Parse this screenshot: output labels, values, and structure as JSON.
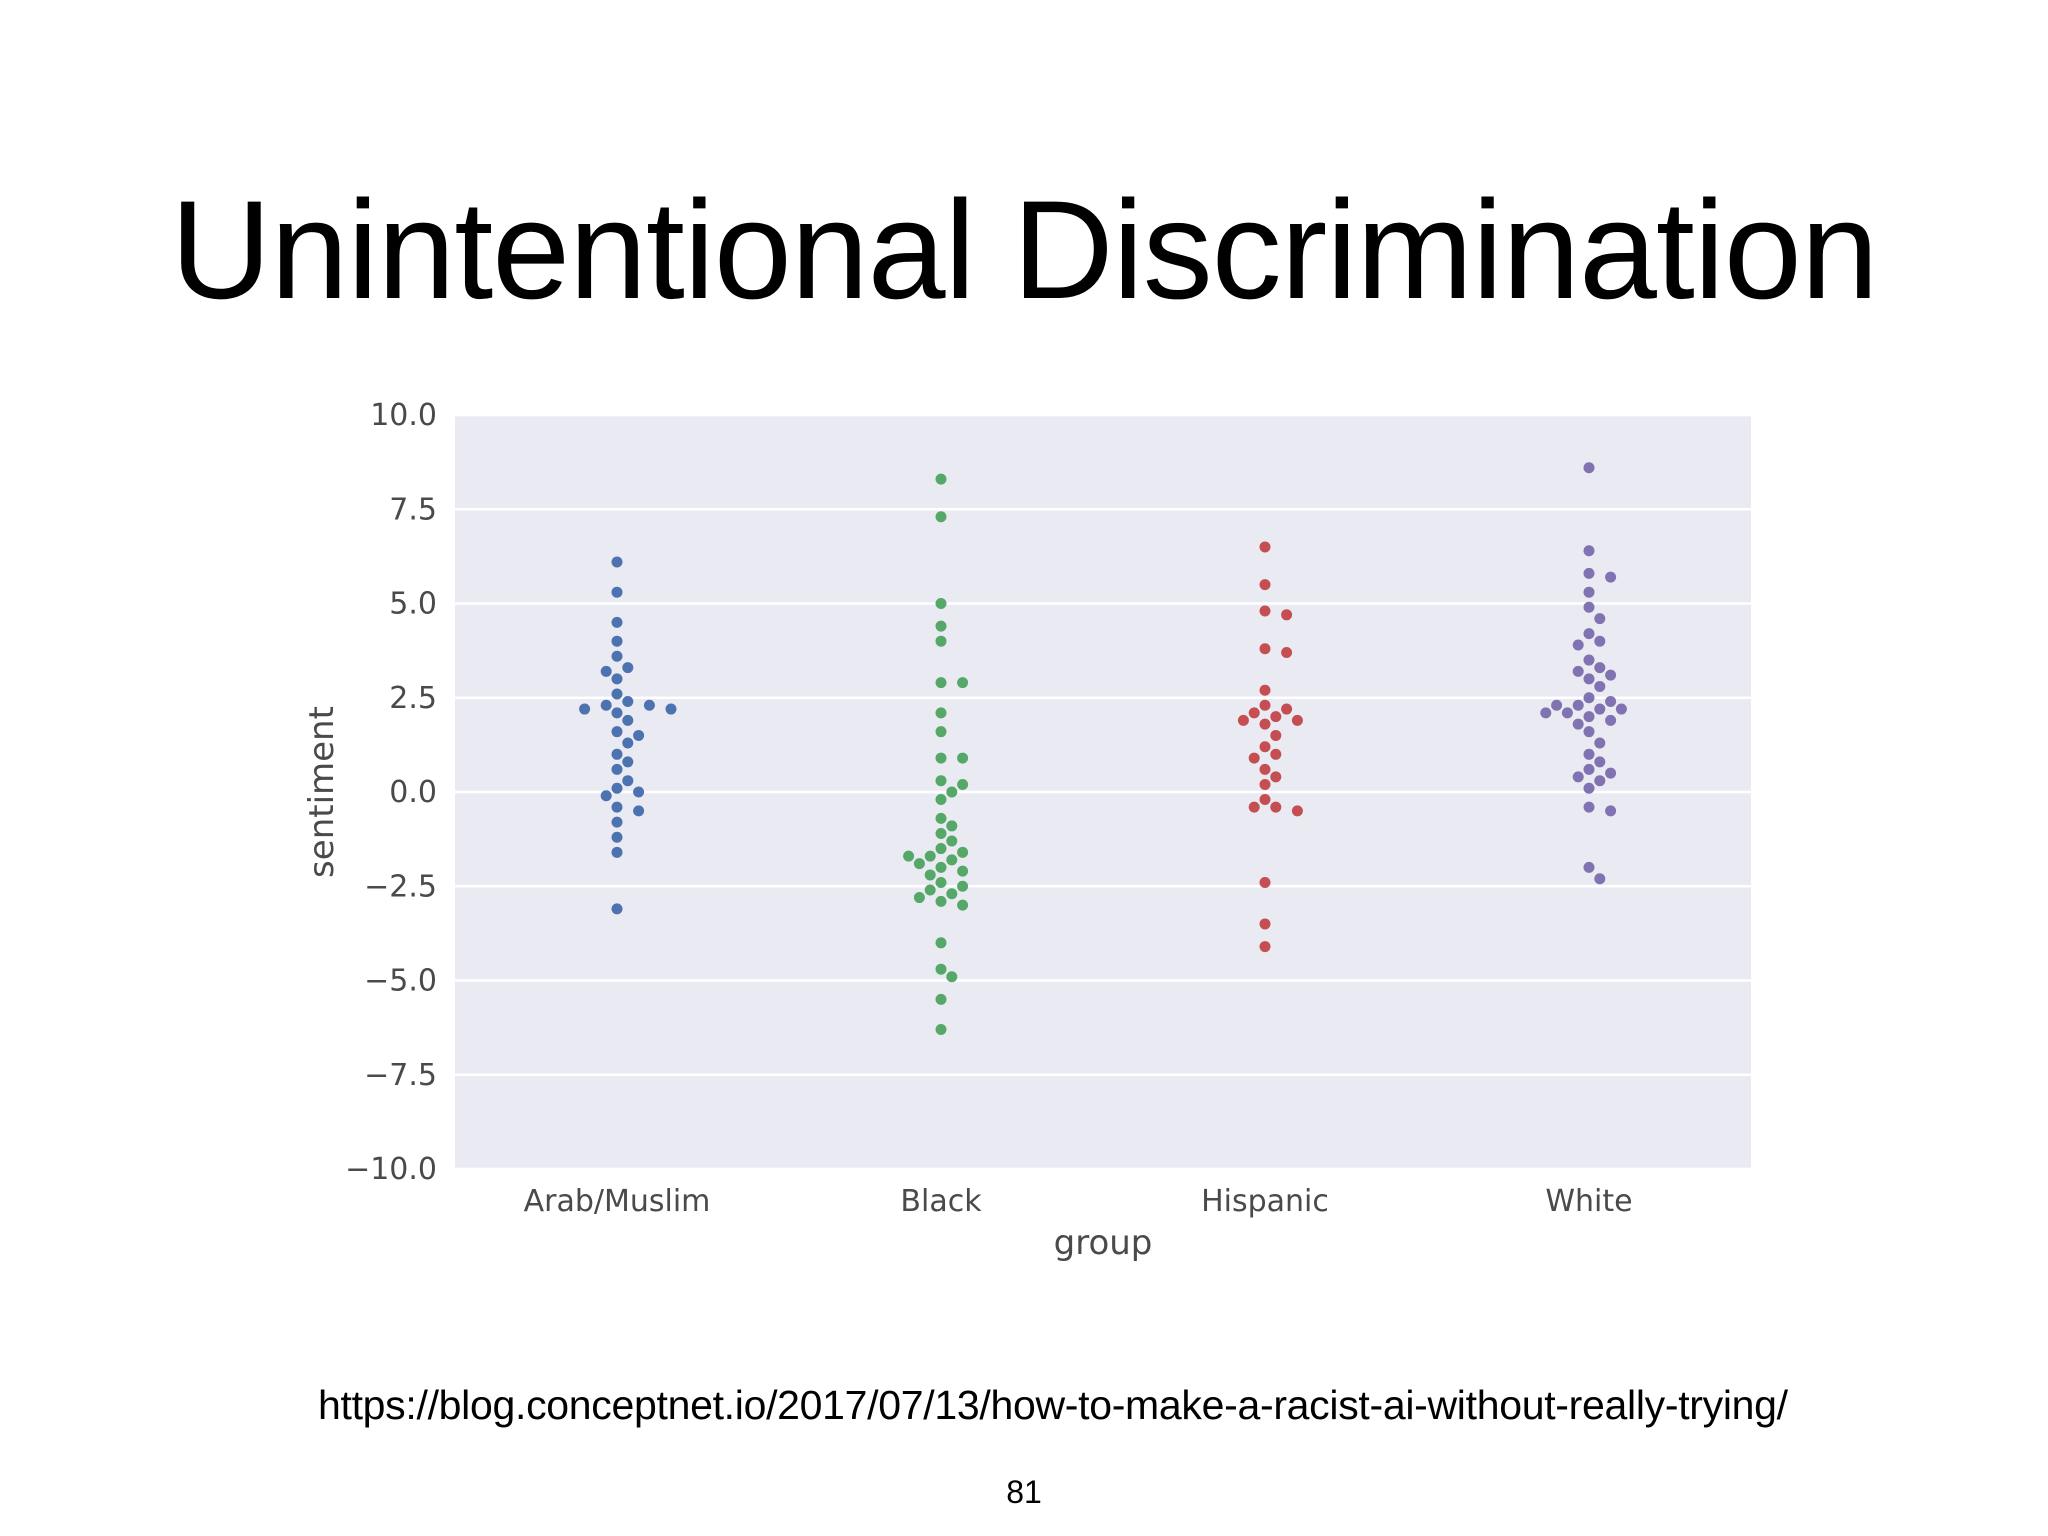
{
  "slide": {
    "title": "Unintentional Discrimination",
    "source_url": "https://blog.conceptnet.io/2017/07/13/how-to-make-a-racist-ai-without-really-trying/",
    "page_number": "81"
  },
  "chart_data": {
    "type": "scatter",
    "subtype": "swarm",
    "title": "",
    "xlabel": "group",
    "ylabel": "sentiment",
    "ylim": [
      -10,
      10
    ],
    "yticks": [
      10,
      7.5,
      5,
      2.5,
      0,
      -2.5,
      -5,
      -7.5,
      -10
    ],
    "ytick_labels": [
      "10.0",
      "7.5",
      "5.0",
      "2.5",
      "0.0",
      "−2.5",
      "−5.0",
      "−7.5",
      "−10.0"
    ],
    "categories": [
      "Arab/Muslim",
      "Black",
      "Hispanic",
      "White"
    ],
    "grid": true,
    "background_color": "#eaeaf2",
    "series": [
      {
        "name": "Arab/Muslim",
        "color": "#4c72b0",
        "values": [
          6.1,
          5.3,
          4.5,
          4.0,
          3.6,
          3.3,
          3.2,
          3.0,
          2.6,
          2.4,
          2.3,
          2.3,
          2.2,
          2.2,
          2.1,
          1.9,
          1.6,
          1.5,
          1.3,
          1.0,
          0.8,
          0.6,
          0.3,
          0.1,
          0.0,
          -0.1,
          -0.4,
          -0.5,
          -0.8,
          -1.2,
          -1.6,
          -3.1
        ]
      },
      {
        "name": "Black",
        "color": "#55a868",
        "values": [
          8.3,
          7.3,
          5.0,
          4.4,
          4.0,
          2.9,
          2.9,
          2.1,
          1.6,
          0.9,
          0.9,
          0.3,
          0.2,
          0.0,
          -0.2,
          -0.7,
          -0.9,
          -1.1,
          -1.3,
          -1.5,
          -1.6,
          -1.7,
          -1.7,
          -1.8,
          -1.9,
          -2.0,
          -2.1,
          -2.2,
          -2.4,
          -2.5,
          -2.6,
          -2.7,
          -2.8,
          -2.9,
          -3.0,
          -4.0,
          -4.7,
          -4.9,
          -5.5,
          -6.3
        ]
      },
      {
        "name": "Hispanic",
        "color": "#c44e52",
        "values": [
          6.5,
          5.5,
          4.8,
          4.7,
          3.8,
          3.7,
          2.7,
          2.3,
          2.2,
          2.1,
          2.0,
          1.9,
          1.9,
          1.8,
          1.5,
          1.2,
          1.0,
          0.9,
          0.6,
          0.4,
          0.2,
          -0.2,
          -0.4,
          -0.4,
          -0.5,
          -2.4,
          -3.5,
          -4.1
        ]
      },
      {
        "name": "White",
        "color": "#8172b2",
        "values": [
          8.6,
          6.4,
          5.8,
          5.7,
          5.3,
          4.9,
          4.6,
          4.2,
          4.0,
          3.9,
          3.5,
          3.3,
          3.2,
          3.1,
          3.0,
          2.8,
          2.5,
          2.4,
          2.3,
          2.3,
          2.2,
          2.2,
          2.1,
          2.1,
          2.0,
          1.9,
          1.8,
          1.6,
          1.3,
          1.0,
          0.8,
          0.6,
          0.5,
          0.4,
          0.3,
          0.1,
          -0.4,
          -0.5,
          -2.0,
          -2.3
        ]
      }
    ]
  }
}
